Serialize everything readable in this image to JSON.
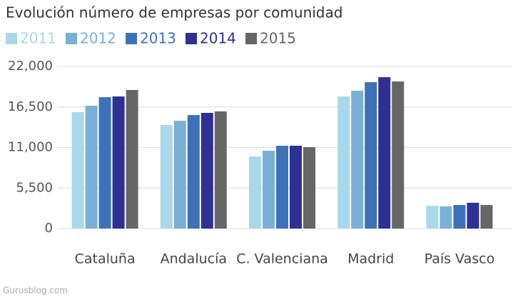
{
  "chart_data": {
    "type": "bar",
    "title": "Evolución número de empresas por comunidad",
    "source": "Gurusblog.com",
    "categories": [
      "Cataluña",
      "Andalucía",
      "C. Valenciana",
      "Madrid",
      "País Vasco"
    ],
    "series": [
      {
        "name": "2011",
        "color": "#a8d8ea",
        "values": [
          15800,
          14050,
          9790,
          17930,
          3100
        ]
      },
      {
        "name": "2012",
        "color": "#7ab0d6",
        "values": [
          16670,
          14630,
          10560,
          18700,
          3000
        ]
      },
      {
        "name": "2013",
        "color": "#3d72b8",
        "values": [
          17830,
          15400,
          11240,
          19860,
          3200
        ]
      },
      {
        "name": "2014",
        "color": "#2e3192",
        "values": [
          17930,
          15700,
          11240,
          20540,
          3500
        ]
      },
      {
        "name": "2015",
        "color": "#666666",
        "values": [
          18800,
          15900,
          11050,
          19960,
          3200
        ]
      }
    ],
    "ylim": [
      0,
      22000
    ],
    "yticks": [
      0,
      {
        "value": 5500,
        "label": "5,500"
      },
      {
        "value": 11000,
        "label": "11,000"
      },
      {
        "value": 16500,
        "label": "16,500"
      },
      {
        "value": 22000,
        "label": "22,000"
      }
    ],
    "grid": true,
    "legend": "top"
  }
}
